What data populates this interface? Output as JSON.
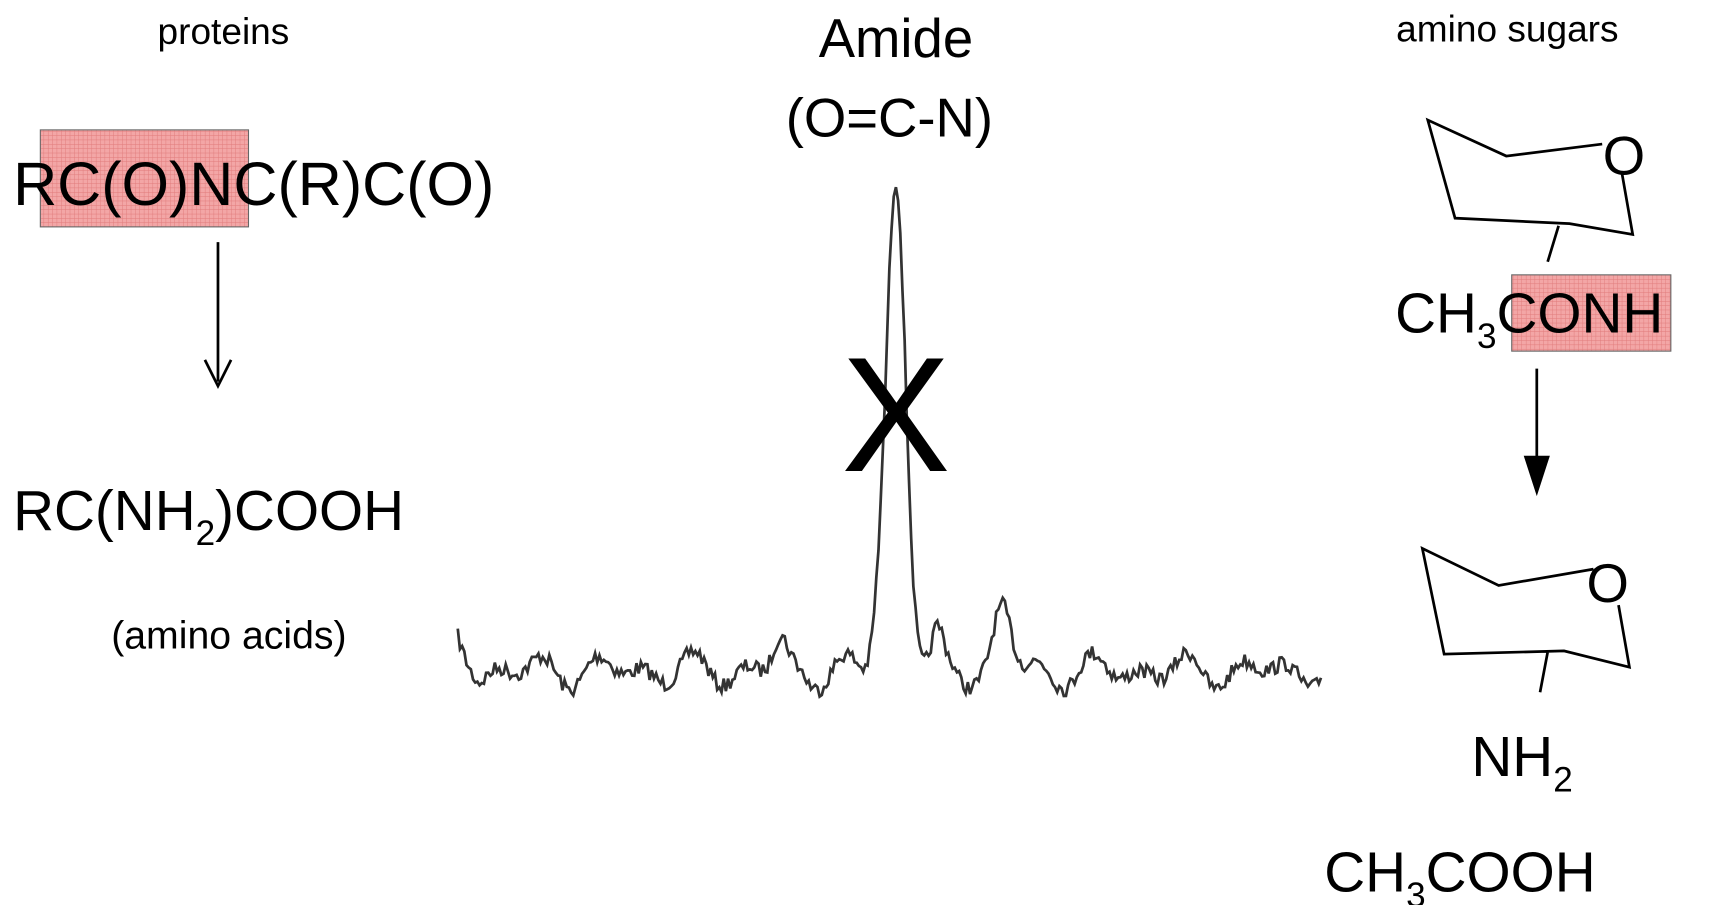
{
  "left": {
    "label": "proteins",
    "formula": [
      "RC(O)N",
      "C(R)C(O)"
    ],
    "product": [
      "RC(NH",
      "2",
      ")COOH"
    ],
    "product_label": "(amino acids)"
  },
  "center": {
    "title": "Amide",
    "subtitle": "(O=C-N)",
    "mark": "X"
  },
  "right": {
    "label": "amino sugars",
    "ring_atom_top": "O",
    "formula": [
      "CH",
      "3",
      "CONH"
    ],
    "ring_atom_bottom": "O",
    "amine": [
      "NH",
      "2"
    ],
    "product": [
      "CH",
      "3",
      "COOH"
    ]
  }
}
